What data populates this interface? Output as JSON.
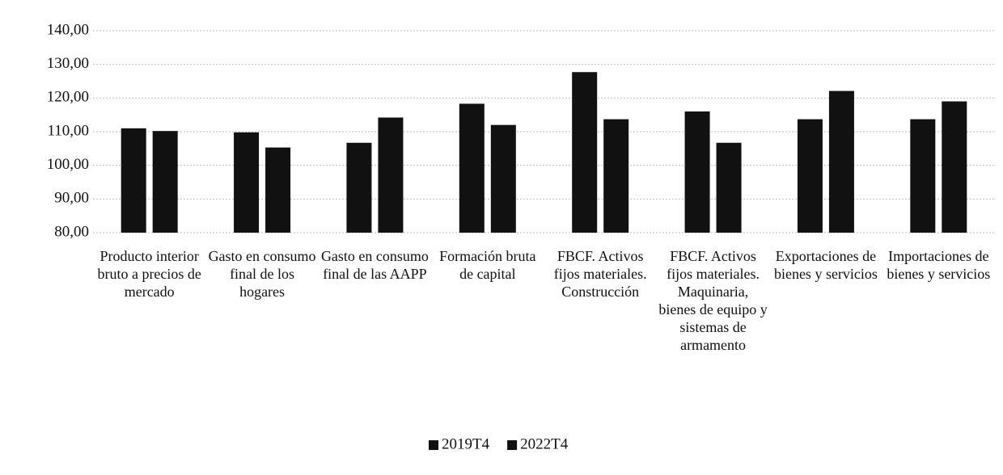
{
  "chart_data": {
    "type": "bar",
    "categories": [
      "Producto interior bruto a precios de mercado",
      "Gasto en consumo final de los hogares",
      "Gasto en consumo final de las AAPP",
      "Formación bruta de capital",
      "FBCF. Activos fijos materiales. Construcción",
      "FBCF. Activos fijos materiales. Maquinaria, bienes de equipo y sistemas de armamento",
      "Exportaciones de bienes y servicios",
      "Importaciones de bienes y servicios"
    ],
    "series": [
      {
        "name": "2019T4",
        "color": "#111111",
        "values": [
          111,
          109.8,
          106.7,
          118.3,
          127.7,
          116,
          113.7,
          113.7
        ]
      },
      {
        "name": "2022T4",
        "color": "#111111",
        "values": [
          110.2,
          105.3,
          114.2,
          112,
          113.7,
          106.7,
          122.1,
          119
        ]
      }
    ],
    "ylim": [
      80,
      140
    ],
    "yticks": [
      {
        "value": 80,
        "label": "80,00"
      },
      {
        "value": 90,
        "label": "90,00"
      },
      {
        "value": 100,
        "label": "100,00"
      },
      {
        "value": 110,
        "label": "110,00"
      },
      {
        "value": 120,
        "label": "120,00"
      },
      {
        "value": 130,
        "label": "130,00"
      },
      {
        "value": 140,
        "label": "140,00"
      }
    ],
    "grid": true,
    "legend": "bottom"
  }
}
